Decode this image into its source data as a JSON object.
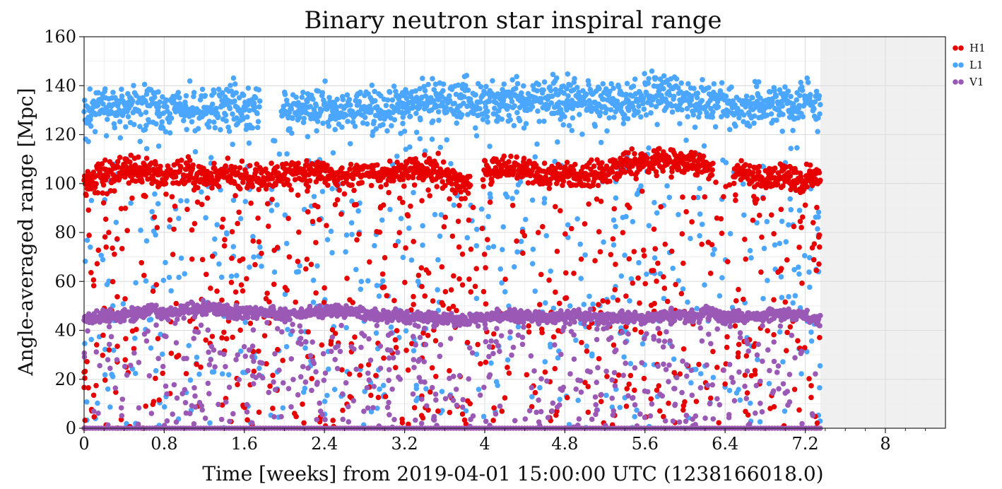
{
  "chart_data": {
    "type": "scatter",
    "title": "Binary neutron star inspiral range",
    "xlabel": "Time [weeks] from 2019-04-01 15:00:00 UTC (1238166018.0)",
    "ylabel": "Angle-averaged range [Mpc]",
    "xlim": [
      0,
      8.6
    ],
    "ylim": [
      0,
      160
    ],
    "xticks": [
      0,
      0.8,
      1.6,
      2.4,
      3.2,
      4,
      4.8,
      5.6,
      6.4,
      7.2,
      8
    ],
    "xtick_labels": [
      "0",
      "0.8",
      "1.6",
      "2.4",
      "3.2",
      "4",
      "4.8",
      "5.6",
      "6.4",
      "7.2",
      "8"
    ],
    "yticks": [
      0,
      20,
      40,
      60,
      80,
      100,
      120,
      140,
      160
    ],
    "ytick_labels": [
      "0",
      "20",
      "40",
      "60",
      "80",
      "100",
      "120",
      "140",
      "160"
    ],
    "grid": true,
    "legend_position": "outside-top-right",
    "shaded_future_region": [
      7.35,
      8.6
    ],
    "series": [
      {
        "name": "H1",
        "color": "#e60000",
        "typical_range": [
          95,
          112
        ],
        "x": [
          0.0,
          0.2,
          0.4,
          0.6,
          0.8,
          1.0,
          1.2,
          1.4,
          1.6,
          1.8,
          2.0,
          2.2,
          2.4,
          2.6,
          2.8,
          3.0,
          3.2,
          3.4,
          3.6,
          3.8,
          4.0,
          4.2,
          4.4,
          4.6,
          4.8,
          5.0,
          5.2,
          5.4,
          5.6,
          5.8,
          6.0,
          6.2,
          6.4,
          6.6,
          6.8,
          7.0,
          7.2,
          7.35
        ],
        "y": [
          100,
          104,
          106,
          105,
          103,
          105,
          103,
          104,
          102,
          103,
          104,
          105,
          104,
          103,
          104,
          103,
          104,
          106,
          105,
          98,
          104,
          107,
          105,
          103,
          104,
          102,
          106,
          108,
          108,
          109,
          109,
          106,
          105,
          104,
          101,
          103,
          102,
          103
        ],
        "y_min": 0,
        "y_max": 116
      },
      {
        "name": "L1",
        "color": "#4ba6ff",
        "typical_range": [
          115,
          143
        ],
        "x": [
          0.0,
          0.2,
          0.4,
          0.6,
          0.8,
          1.0,
          1.2,
          1.4,
          1.6,
          1.8,
          2.0,
          2.2,
          2.4,
          2.6,
          2.8,
          3.0,
          3.2,
          3.4,
          3.6,
          3.8,
          4.0,
          4.2,
          4.4,
          4.6,
          4.8,
          5.0,
          5.2,
          5.4,
          5.6,
          5.8,
          6.0,
          6.2,
          6.4,
          6.6,
          6.8,
          7.0,
          7.2,
          7.35
        ],
        "y": [
          128,
          132,
          131,
          133,
          130,
          131,
          129,
          132,
          130,
          131,
          130,
          131,
          132,
          129,
          131,
          130,
          133,
          134,
          133,
          134,
          133,
          134,
          133,
          134,
          135,
          134,
          133,
          134,
          136,
          137,
          134,
          133,
          132,
          131,
          133,
          132,
          133,
          132
        ],
        "y_min": 0,
        "y_max": 146
      },
      {
        "name": "V1",
        "color": "#9b59b6",
        "typical_range": [
          42,
          50
        ],
        "x": [
          0.0,
          0.2,
          0.4,
          0.6,
          0.8,
          1.0,
          1.2,
          1.4,
          1.6,
          1.8,
          2.0,
          2.2,
          2.4,
          2.6,
          2.8,
          3.0,
          3.2,
          3.4,
          3.6,
          3.8,
          4.0,
          4.2,
          4.4,
          4.6,
          4.8,
          5.0,
          5.2,
          5.4,
          5.6,
          5.8,
          6.0,
          6.2,
          6.4,
          6.6,
          6.8,
          7.0,
          7.2,
          7.35
        ],
        "y": [
          45,
          46,
          46,
          48,
          47,
          48,
          49,
          48,
          47,
          48,
          46,
          47,
          48,
          48,
          47,
          46,
          46,
          45,
          45,
          44,
          45,
          46,
          46,
          45,
          46,
          46,
          45,
          46,
          45,
          46,
          46,
          47,
          46,
          45,
          46,
          47,
          46,
          44
        ],
        "y_min": 0,
        "y_max": 53
      }
    ]
  }
}
